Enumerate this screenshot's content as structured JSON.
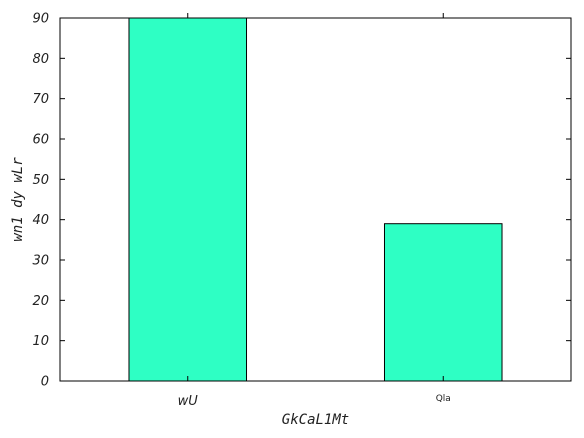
{
  "chart_data": {
    "type": "bar",
    "categories": [
      "wU",
      "Qla"
    ],
    "values": [
      90,
      39
    ],
    "xlabel": "GkCaL1Mt",
    "ylabel": "wn1 dy wLr",
    "ylim": [
      0,
      90
    ],
    "yticks": [
      0,
      10,
      20,
      30,
      40,
      50,
      60,
      70,
      80,
      90
    ],
    "grid": false,
    "legend": "none",
    "bar_color": "#2effc4",
    "edge_color": "#000000"
  }
}
